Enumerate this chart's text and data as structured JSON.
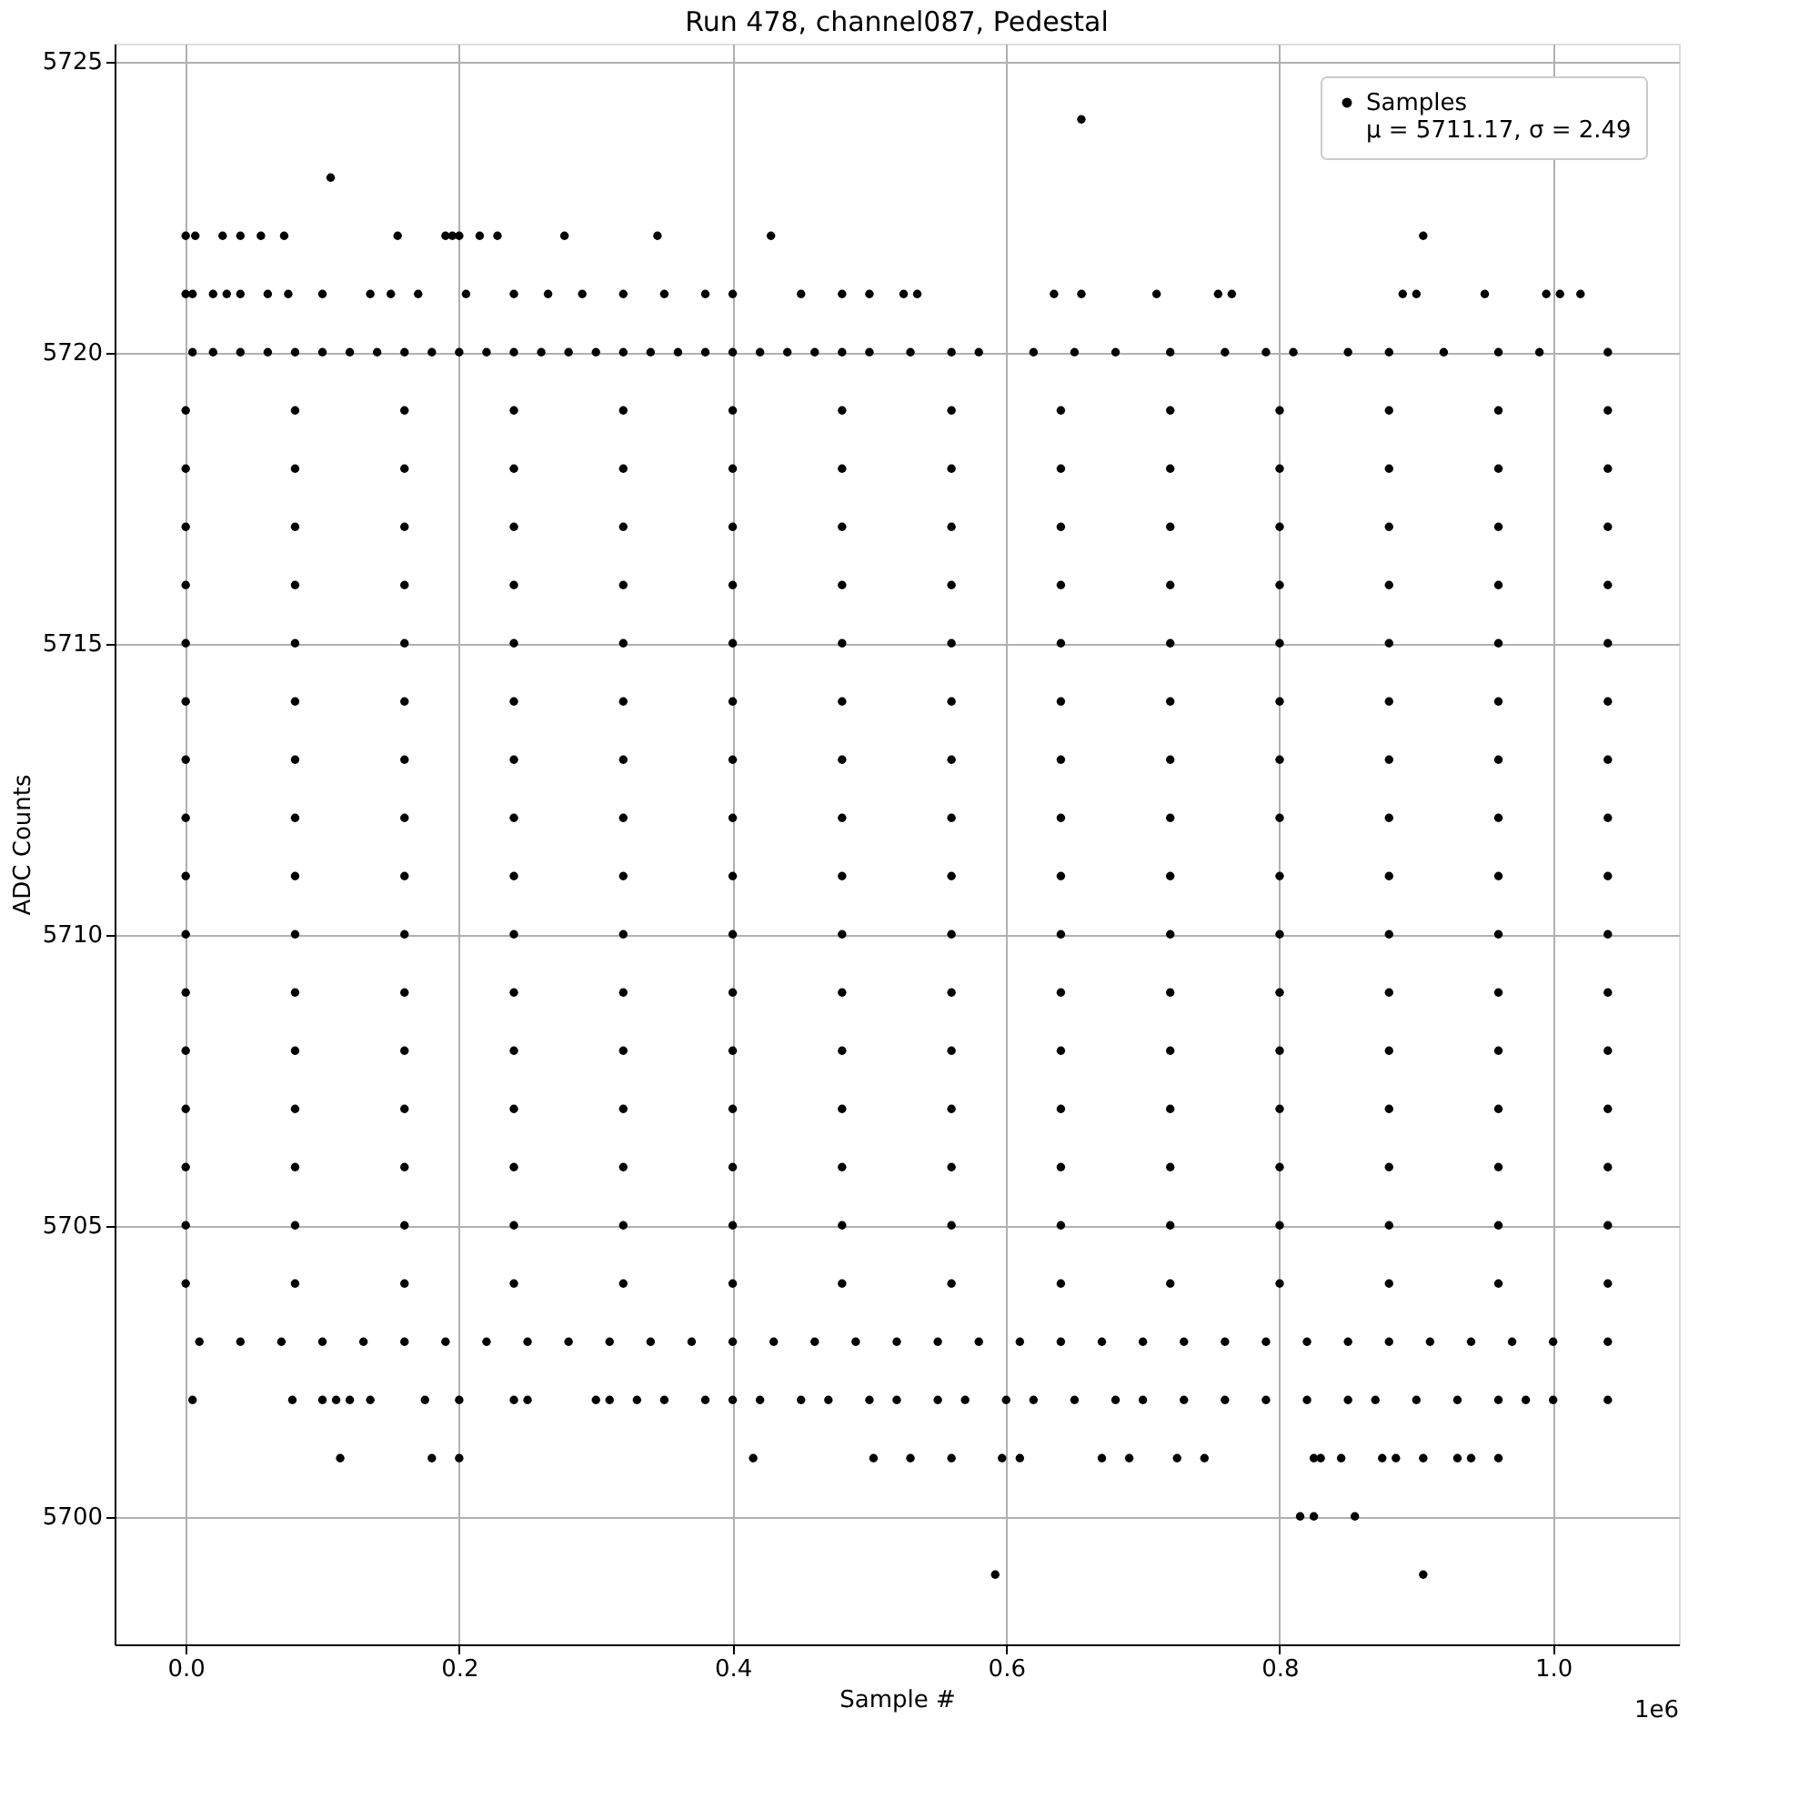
{
  "chart_data": {
    "type": "scatter",
    "title": "Run 478, channel087, Pedestal",
    "xlabel": "Sample #",
    "ylabel": "ADC Counts",
    "annotations": [
      "1e6"
    ],
    "xlim": [
      -0.052,
      1.092
    ],
    "ylim": [
      5697.8,
      5725.3
    ],
    "xticks": [
      {
        "value": 0,
        "label": "0.0"
      },
      0.2,
      0.4,
      0.6,
      0.8,
      {
        "value": 1,
        "label": "1.0"
      }
    ],
    "yticks": [
      5700,
      5705,
      5710,
      5715,
      5720,
      5725
    ],
    "grid": true,
    "legend": "top right",
    "marker": "circle",
    "series": [
      {
        "name": "Samples\nμ = 5711.17, σ = 2.49",
        "color": "#000000",
        "x": [
          0.655,
          0.106
        ],
        "values": [
          5724,
          5723
        ]
      },
      {
        "color": "#000000",
        "x": [
          0,
          0.007,
          0.027,
          0.04,
          0.055,
          0.072,
          0.155,
          0.19,
          0.195,
          0.2,
          0.215,
          0.228,
          0.277,
          0.345,
          0.428,
          0.905
        ],
        "values": [
          5722,
          5722,
          5722,
          5722,
          5722,
          5722,
          5722,
          5722,
          5722,
          5722,
          5722,
          5722,
          5722,
          5722,
          5722,
          5722
        ]
      },
      {
        "color": "#000000",
        "x": [
          0,
          0.005,
          0.02,
          0.03,
          0.04,
          0.06,
          0.075,
          0.1,
          0.135,
          0.15,
          0.17,
          0.205,
          0.24,
          0.265,
          0.29,
          0.32,
          0.35,
          0.38,
          0.4,
          0.45,
          0.48,
          0.5,
          0.525,
          0.535,
          0.635,
          0.655,
          0.71,
          0.755,
          0.765,
          0.89,
          0.9,
          0.95,
          0.995,
          1.005,
          1.02
        ],
        "values": [
          5721,
          5721,
          5721,
          5721,
          5721,
          5721,
          5721,
          5721,
          5721,
          5721,
          5721,
          5721,
          5721,
          5721,
          5721,
          5721,
          5721,
          5721,
          5721,
          5721,
          5721,
          5721,
          5721,
          5721,
          5721,
          5721,
          5721,
          5721,
          5721,
          5721,
          5721,
          5721,
          5721,
          5721,
          5721
        ]
      },
      {
        "color": "#000000",
        "x": [
          0.005,
          0.02,
          0.04,
          0.06,
          0.08,
          0.1,
          0.12,
          0.14,
          0.16,
          0.18,
          0.2,
          0.22,
          0.24,
          0.26,
          0.28,
          0.3,
          0.32,
          0.34,
          0.36,
          0.38,
          0.4,
          0.42,
          0.44,
          0.46,
          0.48,
          0.5,
          0.53,
          0.56,
          0.58,
          0.62,
          0.65,
          0.68,
          0.72,
          0.76,
          0.79,
          0.81,
          0.85,
          0.88,
          0.92,
          0.96,
          0.99,
          1.04
        ],
        "values": [
          5720,
          5720,
          5720,
          5720,
          5720,
          5720,
          5720,
          5720,
          5720,
          5720,
          5720,
          5720,
          5720,
          5720,
          5720,
          5720,
          5720,
          5720,
          5720,
          5720,
          5720,
          5720,
          5720,
          5720,
          5720,
          5720,
          5720,
          5720,
          5720,
          5720,
          5720,
          5720,
          5720,
          5720,
          5720,
          5720,
          5720,
          5720,
          5720,
          5720,
          5720,
          5720
        ]
      },
      {
        "color": "#000000",
        "x": [
          0,
          0.08,
          0.16,
          0.24,
          0.32,
          0.4,
          0.48,
          0.56,
          0.64,
          0.72,
          0.8,
          0.88,
          0.96,
          1.04
        ],
        "values": [
          5719,
          5719,
          5719,
          5719,
          5719,
          5719,
          5719,
          5719,
          5719,
          5719,
          5719,
          5719,
          5719,
          5719
        ]
      },
      {
        "color": "#000000",
        "x": [
          0,
          0.08,
          0.16,
          0.24,
          0.32,
          0.4,
          0.48,
          0.56,
          0.64,
          0.72,
          0.8,
          0.88,
          0.96,
          1.04
        ],
        "values": [
          5718,
          5718,
          5718,
          5718,
          5718,
          5718,
          5718,
          5718,
          5718,
          5718,
          5718,
          5718,
          5718,
          5718
        ]
      },
      {
        "color": "#000000",
        "x": [
          0,
          0.08,
          0.16,
          0.24,
          0.32,
          0.4,
          0.48,
          0.56,
          0.64,
          0.72,
          0.8,
          0.88,
          0.96,
          1.04
        ],
        "values": [
          5717,
          5717,
          5717,
          5717,
          5717,
          5717,
          5717,
          5717,
          5717,
          5717,
          5717,
          5717,
          5717,
          5717
        ]
      },
      {
        "color": "#000000",
        "x": [
          0,
          0.08,
          0.16,
          0.24,
          0.32,
          0.4,
          0.48,
          0.56,
          0.64,
          0.72,
          0.8,
          0.88,
          0.96,
          1.04
        ],
        "values": [
          5716,
          5716,
          5716,
          5716,
          5716,
          5716,
          5716,
          5716,
          5716,
          5716,
          5716,
          5716,
          5716,
          5716
        ]
      },
      {
        "color": "#000000",
        "x": [
          0,
          0.08,
          0.16,
          0.24,
          0.32,
          0.4,
          0.48,
          0.56,
          0.64,
          0.72,
          0.8,
          0.88,
          0.96,
          1.04
        ],
        "values": [
          5715,
          5715,
          5715,
          5715,
          5715,
          5715,
          5715,
          5715,
          5715,
          5715,
          5715,
          5715,
          5715,
          5715
        ]
      },
      {
        "color": "#000000",
        "x": [
          0,
          0.08,
          0.16,
          0.24,
          0.32,
          0.4,
          0.48,
          0.56,
          0.64,
          0.72,
          0.8,
          0.88,
          0.96,
          1.04
        ],
        "values": [
          5714,
          5714,
          5714,
          5714,
          5714,
          5714,
          5714,
          5714,
          5714,
          5714,
          5714,
          5714,
          5714,
          5714
        ]
      },
      {
        "color": "#000000",
        "x": [
          0,
          0.08,
          0.16,
          0.24,
          0.32,
          0.4,
          0.48,
          0.56,
          0.64,
          0.72,
          0.8,
          0.88,
          0.96,
          1.04
        ],
        "values": [
          5713,
          5713,
          5713,
          5713,
          5713,
          5713,
          5713,
          5713,
          5713,
          5713,
          5713,
          5713,
          5713,
          5713
        ]
      },
      {
        "color": "#000000",
        "x": [
          0,
          0.08,
          0.16,
          0.24,
          0.32,
          0.4,
          0.48,
          0.56,
          0.64,
          0.72,
          0.8,
          0.88,
          0.96,
          1.04
        ],
        "values": [
          5712,
          5712,
          5712,
          5712,
          5712,
          5712,
          5712,
          5712,
          5712,
          5712,
          5712,
          5712,
          5712,
          5712
        ]
      },
      {
        "color": "#000000",
        "x": [
          0,
          0.08,
          0.16,
          0.24,
          0.32,
          0.4,
          0.48,
          0.56,
          0.64,
          0.72,
          0.8,
          0.88,
          0.96,
          1.04
        ],
        "values": [
          5711,
          5711,
          5711,
          5711,
          5711,
          5711,
          5711,
          5711,
          5711,
          5711,
          5711,
          5711,
          5711,
          5711
        ]
      },
      {
        "color": "#000000",
        "x": [
          0,
          0.08,
          0.16,
          0.24,
          0.32,
          0.4,
          0.48,
          0.56,
          0.64,
          0.72,
          0.8,
          0.88,
          0.96,
          1.04
        ],
        "values": [
          5710,
          5710,
          5710,
          5710,
          5710,
          5710,
          5710,
          5710,
          5710,
          5710,
          5710,
          5710,
          5710,
          5710
        ]
      },
      {
        "color": "#000000",
        "x": [
          0,
          0.08,
          0.16,
          0.24,
          0.32,
          0.4,
          0.48,
          0.56,
          0.64,
          0.72,
          0.8,
          0.88,
          0.96,
          1.04
        ],
        "values": [
          5709,
          5709,
          5709,
          5709,
          5709,
          5709,
          5709,
          5709,
          5709,
          5709,
          5709,
          5709,
          5709,
          5709
        ]
      },
      {
        "color": "#000000",
        "x": [
          0,
          0.08,
          0.16,
          0.24,
          0.32,
          0.4,
          0.48,
          0.56,
          0.64,
          0.72,
          0.8,
          0.88,
          0.96,
          1.04
        ],
        "values": [
          5708,
          5708,
          5708,
          5708,
          5708,
          5708,
          5708,
          5708,
          5708,
          5708,
          5708,
          5708,
          5708,
          5708
        ]
      },
      {
        "color": "#000000",
        "x": [
          0,
          0.08,
          0.16,
          0.24,
          0.32,
          0.4,
          0.48,
          0.56,
          0.64,
          0.72,
          0.8,
          0.88,
          0.96,
          1.04
        ],
        "values": [
          5707,
          5707,
          5707,
          5707,
          5707,
          5707,
          5707,
          5707,
          5707,
          5707,
          5707,
          5707,
          5707,
          5707
        ]
      },
      {
        "color": "#000000",
        "x": [
          0,
          0.08,
          0.16,
          0.24,
          0.32,
          0.4,
          0.48,
          0.56,
          0.64,
          0.72,
          0.8,
          0.88,
          0.96,
          1.04
        ],
        "values": [
          5706,
          5706,
          5706,
          5706,
          5706,
          5706,
          5706,
          5706,
          5706,
          5706,
          5706,
          5706,
          5706,
          5706
        ]
      },
      {
        "color": "#000000",
        "x": [
          0,
          0.08,
          0.16,
          0.24,
          0.32,
          0.4,
          0.48,
          0.56,
          0.64,
          0.72,
          0.8,
          0.88,
          0.96,
          1.04
        ],
        "values": [
          5705,
          5705,
          5705,
          5705,
          5705,
          5705,
          5705,
          5705,
          5705,
          5705,
          5705,
          5705,
          5705,
          5705
        ]
      },
      {
        "color": "#000000",
        "x": [
          0,
          0.08,
          0.16,
          0.24,
          0.32,
          0.4,
          0.48,
          0.56,
          0.64,
          0.72,
          0.8,
          0.88,
          0.96,
          1.04
        ],
        "values": [
          5704,
          5704,
          5704,
          5704,
          5704,
          5704,
          5704,
          5704,
          5704,
          5704,
          5704,
          5704,
          5704,
          5704
        ]
      },
      {
        "color": "#000000",
        "x": [
          0.01,
          0.04,
          0.07,
          0.1,
          0.13,
          0.16,
          0.19,
          0.22,
          0.25,
          0.28,
          0.31,
          0.34,
          0.37,
          0.4,
          0.43,
          0.46,
          0.49,
          0.52,
          0.55,
          0.58,
          0.61,
          0.64,
          0.67,
          0.7,
          0.73,
          0.76,
          0.79,
          0.82,
          0.85,
          0.88,
          0.91,
          0.94,
          0.97,
          1.0,
          1.04
        ],
        "values": [
          5703,
          5703,
          5703,
          5703,
          5703,
          5703,
          5703,
          5703,
          5703,
          5703,
          5703,
          5703,
          5703,
          5703,
          5703,
          5703,
          5703,
          5703,
          5703,
          5703,
          5703,
          5703,
          5703,
          5703,
          5703,
          5703,
          5703,
          5703,
          5703,
          5703,
          5703,
          5703,
          5703,
          5703,
          5703
        ]
      },
      {
        "color": "#000000",
        "x": [
          0.005,
          0.078,
          0.1,
          0.11,
          0.12,
          0.135,
          0.175,
          0.2,
          0.24,
          0.25,
          0.3,
          0.31,
          0.33,
          0.35,
          0.38,
          0.4,
          0.42,
          0.45,
          0.47,
          0.5,
          0.52,
          0.55,
          0.57,
          0.6,
          0.62,
          0.65,
          0.68,
          0.7,
          0.73,
          0.76,
          0.79,
          0.82,
          0.85,
          0.87,
          0.9,
          0.93,
          0.96,
          0.98,
          1.0,
          1.04
        ],
        "values": [
          5702,
          5702,
          5702,
          5702,
          5702,
          5702,
          5702,
          5702,
          5702,
          5702,
          5702,
          5702,
          5702,
          5702,
          5702,
          5702,
          5702,
          5702,
          5702,
          5702,
          5702,
          5702,
          5702,
          5702,
          5702,
          5702,
          5702,
          5702,
          5702,
          5702,
          5702,
          5702,
          5702,
          5702,
          5702,
          5702,
          5702,
          5702,
          5702,
          5702
        ]
      },
      {
        "color": "#000000",
        "x": [
          0.113,
          0.18,
          0.2,
          0.415,
          0.503,
          0.53,
          0.56,
          0.597,
          0.61,
          0.67,
          0.69,
          0.725,
          0.745,
          0.825,
          0.83,
          0.845,
          0.875,
          0.885,
          0.905,
          0.93,
          0.94,
          0.96
        ],
        "values": [
          5701,
          5701,
          5701,
          5701,
          5701,
          5701,
          5701,
          5701,
          5701,
          5701,
          5701,
          5701,
          5701,
          5701,
          5701,
          5701,
          5701,
          5701,
          5701,
          5701,
          5701,
          5701
        ]
      },
      {
        "color": "#000000",
        "x": [
          0.815,
          0.825,
          0.855,
          0.592,
          0.905
        ],
        "values": [
          5700,
          5700,
          5700,
          5699,
          5699
        ]
      }
    ]
  }
}
